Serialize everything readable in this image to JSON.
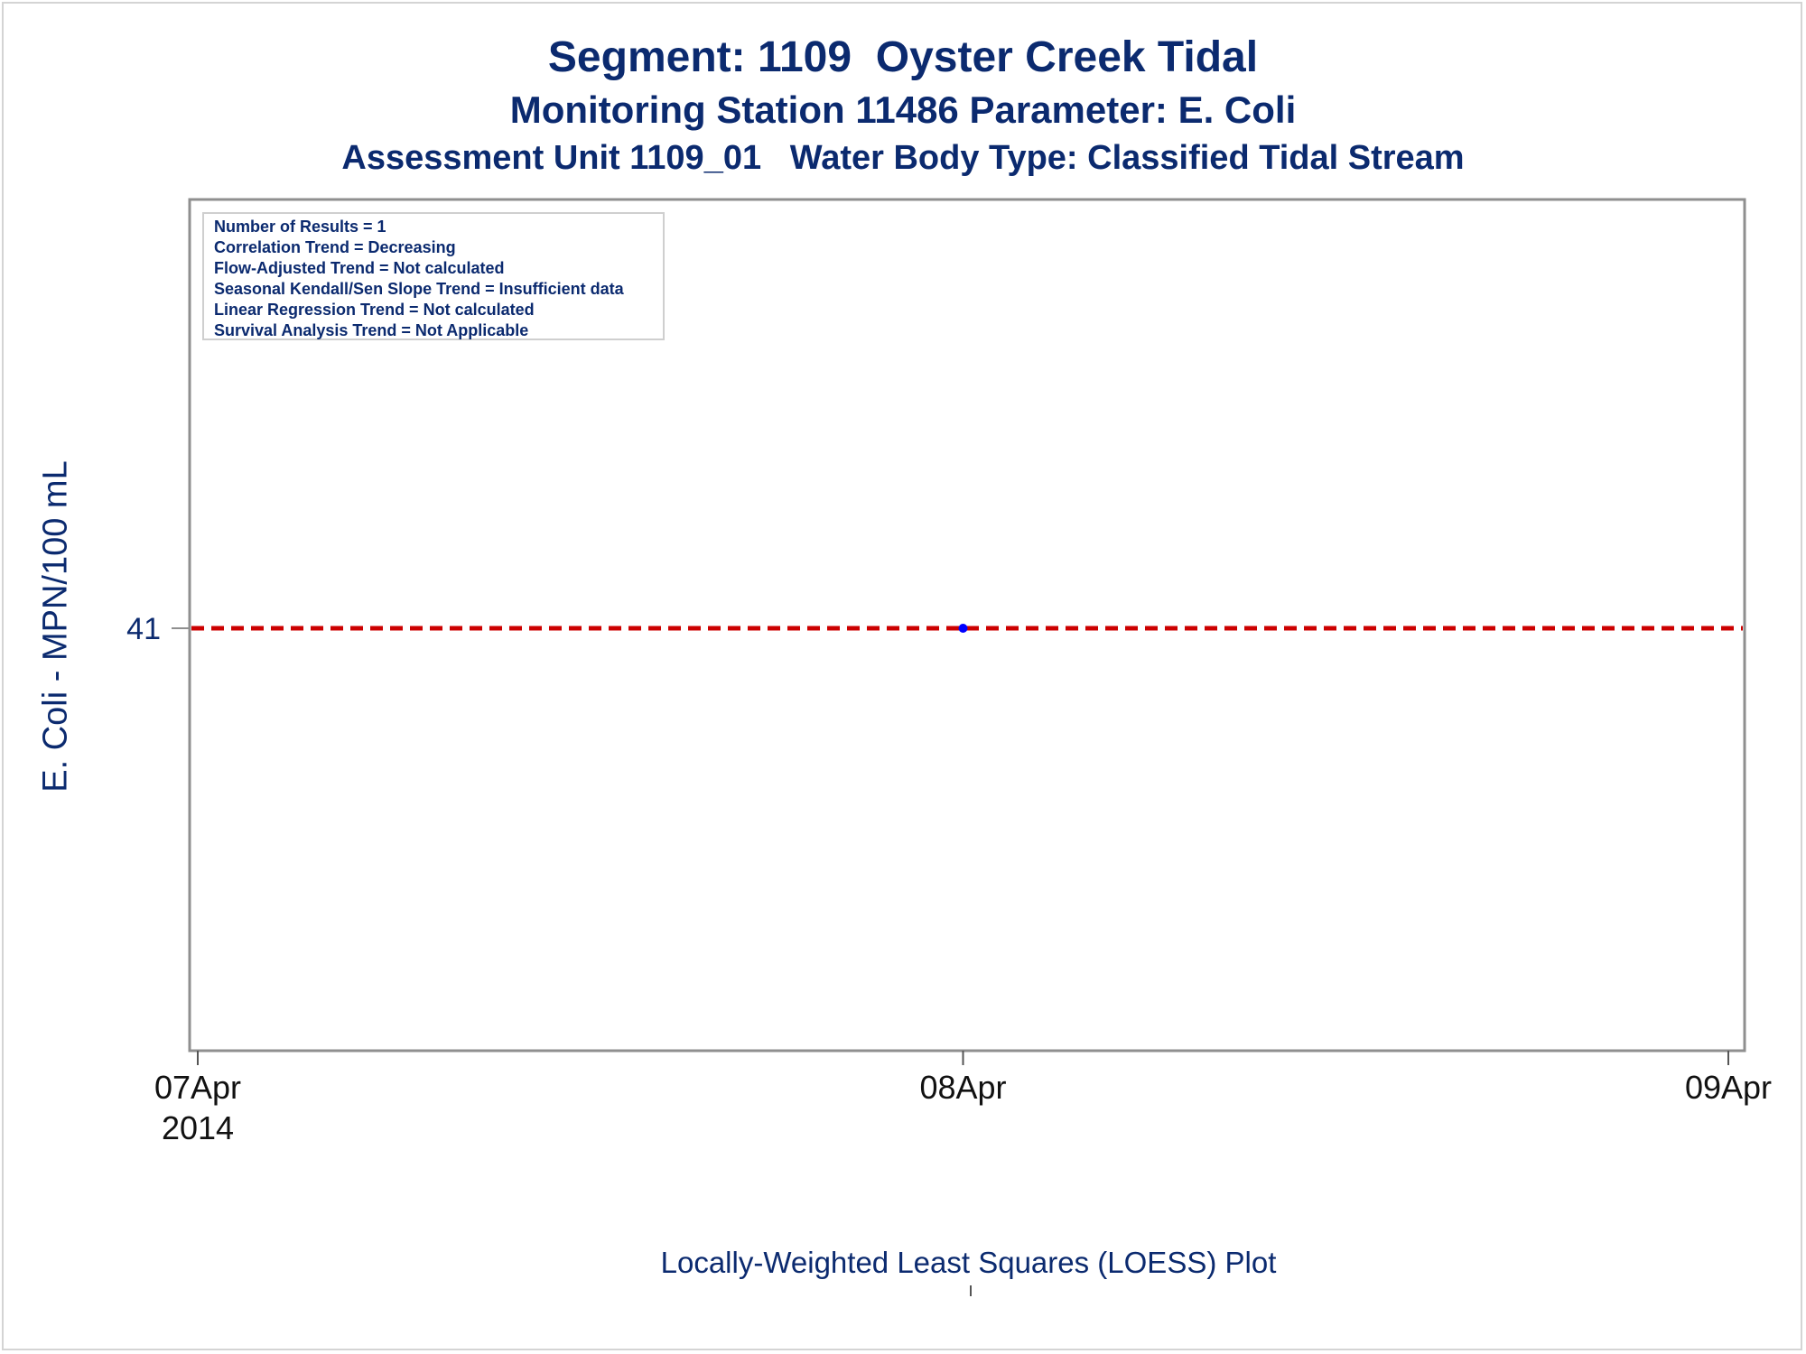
{
  "titles": {
    "line1": "Segment: 1109  Oyster Creek Tidal",
    "line2": "Monitoring Station 11486 Parameter: E. Coli",
    "line3": "Assessment Unit 1109_01   Water Body Type: Classified Tidal Stream"
  },
  "stats": [
    "Number of Results = 1",
    "Correlation Trend = Decreasing",
    "Flow-Adjusted Trend = Not calculated",
    "Seasonal Kendall/Sen Slope Trend = Insufficient data",
    "Linear Regression Trend = Not calculated",
    "Survival Analysis Trend = Not Applicable"
  ],
  "colors": {
    "text": "#0b2a6f",
    "point": "#0000ff",
    "reference_line": "#cc0000",
    "axis": "#8f8f8f"
  },
  "chart_data": {
    "type": "scatter",
    "xlabel": "Locally-Weighted Least Squares (LOESS) Plot",
    "ylabel": "E. Coli - MPN/100 mL",
    "x_range": [
      "2014-04-07",
      "2014-04-09"
    ],
    "x_ticks": [
      {
        "date": "2014-04-07",
        "label": "07Apr",
        "sublabel": "2014"
      },
      {
        "date": "2014-04-08",
        "label": "08Apr",
        "sublabel": ""
      },
      {
        "date": "2014-04-09",
        "label": "09Apr",
        "sublabel": ""
      }
    ],
    "y_ticks": [
      41
    ],
    "y_tick_labels": [
      "41"
    ],
    "points": [
      {
        "x": "2014-04-08",
        "y": 41
      }
    ],
    "reference_line": {
      "style": "dashed",
      "y": 41
    },
    "grid": false,
    "legend": "none"
  }
}
